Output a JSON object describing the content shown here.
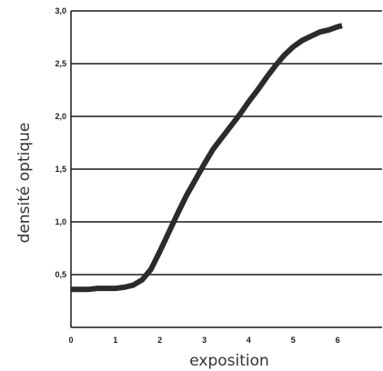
{
  "chart_data": {
    "type": "line",
    "title": "",
    "xlabel": "exposition",
    "ylabel": "densité optique",
    "xlim": [
      0,
      7
    ],
    "ylim": [
      0,
      3.0
    ],
    "x_ticks": [
      "0",
      "1",
      "2",
      "3",
      "4",
      "5",
      "6"
    ],
    "y_ticks": [
      "0,5",
      "1,0",
      "1,5",
      "2,0",
      "2,5",
      "3,0"
    ],
    "grid": "horizontal",
    "legend": "none",
    "line_color": "#2b2b2b",
    "series": [
      {
        "x": [
          0,
          0.4,
          0.6,
          1.0,
          1.2,
          1.4,
          1.6,
          1.8,
          2.0,
          2.2,
          2.4,
          2.6,
          2.8,
          3.0,
          3.2,
          3.4,
          3.6,
          3.8,
          4.0,
          4.2,
          4.4,
          4.6,
          4.8,
          5.0,
          5.2,
          5.4,
          5.6,
          5.8,
          6.0,
          6.1
        ],
        "y": [
          0.36,
          0.36,
          0.37,
          0.37,
          0.38,
          0.4,
          0.45,
          0.55,
          0.72,
          0.9,
          1.08,
          1.25,
          1.4,
          1.55,
          1.69,
          1.8,
          1.91,
          2.02,
          2.14,
          2.25,
          2.37,
          2.48,
          2.58,
          2.66,
          2.72,
          2.76,
          2.8,
          2.82,
          2.85,
          2.86
        ]
      }
    ]
  }
}
